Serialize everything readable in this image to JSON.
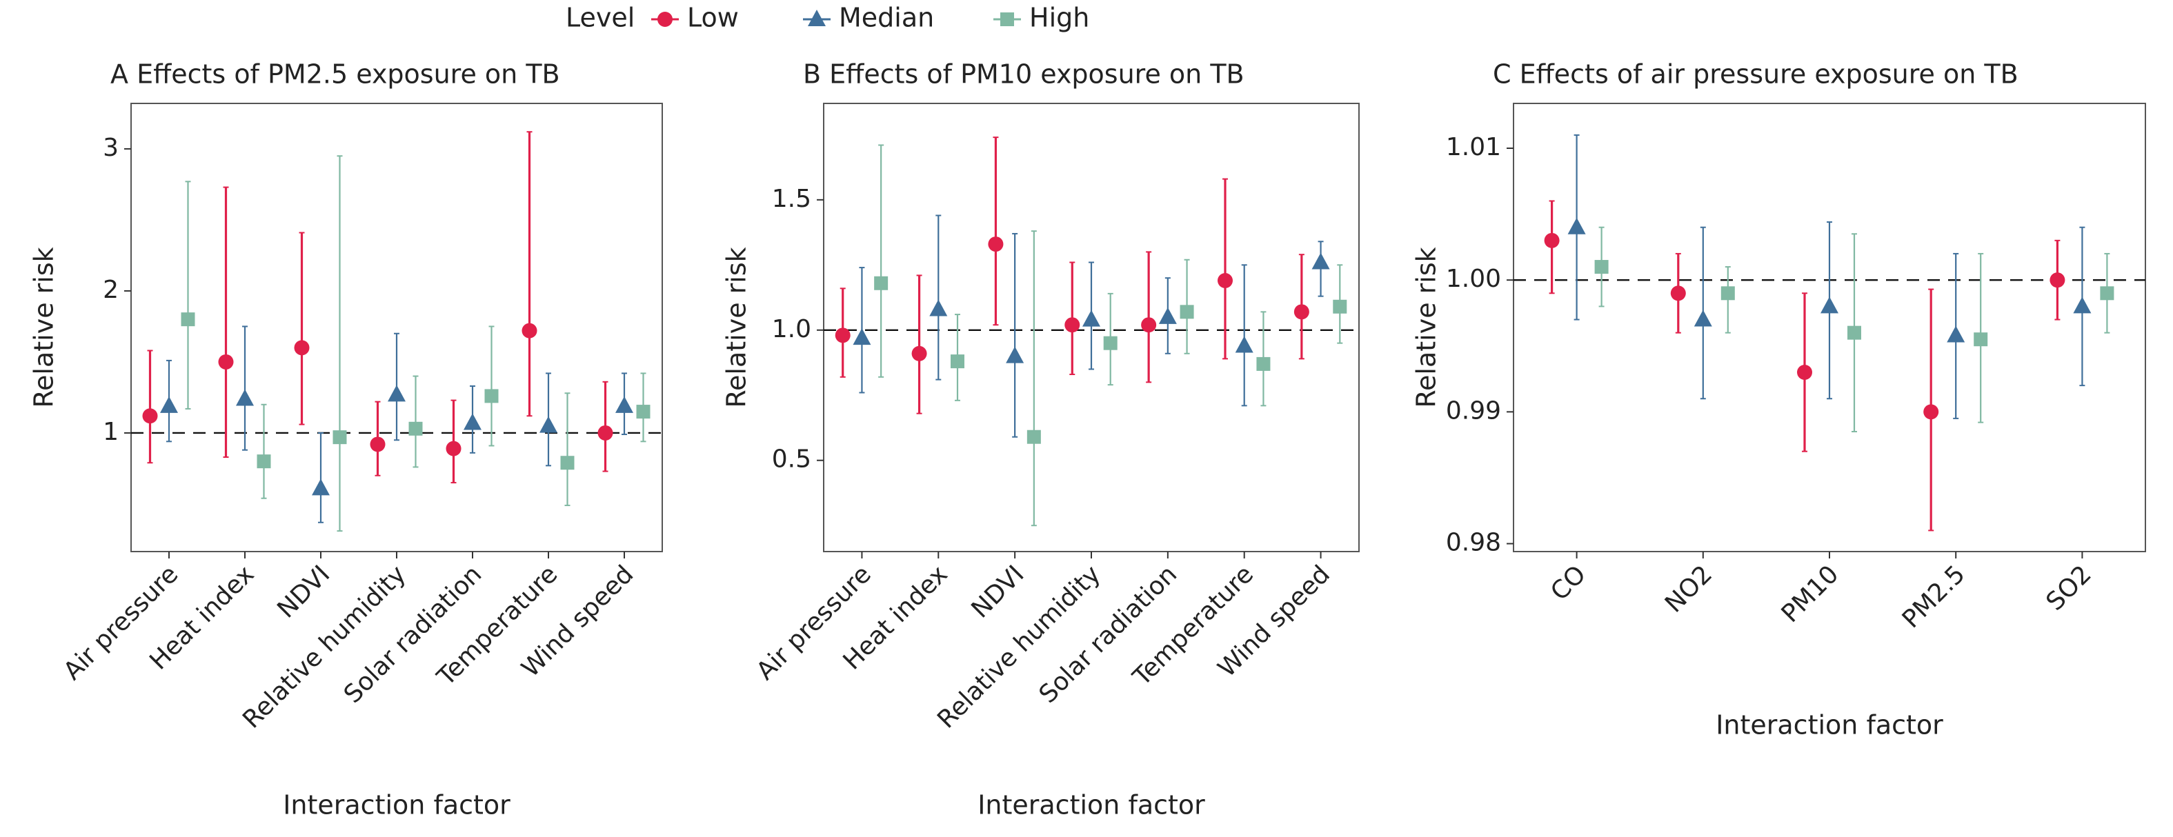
{
  "chart_data": [
    {
      "type": "pointrange",
      "title": "A  Effects of PM2.5 exposure on TB",
      "y_label": "Relative risk",
      "x_label": "Interaction factor",
      "legend_title": "Level",
      "categories": [
        "Air pressure",
        "Heat index",
        "NDVI",
        "Relative humidity",
        "Solar radiation",
        "Temperature",
        "Wind speed"
      ],
      "ylim": [
        0.165,
        3.32
      ],
      "yticks": [
        1,
        2,
        3
      ],
      "hline": 1,
      "series": [
        {
          "name": "Low",
          "color": "#e0204a",
          "marker": "circle",
          "values": [
            1.12,
            1.5,
            1.6,
            0.92,
            0.89,
            1.72,
            1.0
          ],
          "lower": [
            0.79,
            0.83,
            1.06,
            0.7,
            0.65,
            1.12,
            0.73
          ],
          "upper": [
            1.58,
            2.73,
            2.41,
            1.22,
            1.23,
            3.12,
            1.36
          ]
        },
        {
          "name": "Median",
          "color": "#3f6f9a",
          "marker": "triangle",
          "values": [
            1.19,
            1.24,
            0.61,
            1.27,
            1.07,
            1.05,
            1.19
          ],
          "lower": [
            0.94,
            0.88,
            0.37,
            0.95,
            0.86,
            0.77,
            0.99
          ],
          "upper": [
            1.51,
            1.75,
            1.0,
            1.7,
            1.33,
            1.42,
            1.42
          ]
        },
        {
          "name": "High",
          "color": "#80b8a2",
          "marker": "square",
          "values": [
            1.8,
            0.8,
            0.97,
            1.03,
            1.26,
            0.79,
            1.15
          ],
          "lower": [
            1.17,
            0.54,
            0.31,
            0.76,
            0.91,
            0.49,
            0.94
          ],
          "upper": [
            2.77,
            1.2,
            2.95,
            1.4,
            1.75,
            1.28,
            1.42
          ]
        }
      ]
    },
    {
      "type": "pointrange",
      "title": "B  Effects of PM10 exposure on TB",
      "y_label": "Relative risk",
      "x_label": "Interaction factor",
      "categories": [
        "Air pressure",
        "Heat index",
        "NDVI",
        "Relative humidity",
        "Solar radiation",
        "Temperature",
        "Wind speed"
      ],
      "ylim": [
        0.15,
        1.87
      ],
      "yticks": [
        0.5,
        {
          "value": 1,
          "label": "1.0"
        },
        1.5
      ],
      "hline": 1,
      "series": [
        {
          "color": "#e0204a",
          "marker": "circle",
          "values": [
            0.98,
            0.91,
            1.33,
            1.02,
            1.02,
            1.19,
            1.07
          ],
          "lower": [
            0.82,
            0.68,
            1.02,
            0.83,
            0.8,
            0.89,
            0.89
          ],
          "upper": [
            1.16,
            1.21,
            1.74,
            1.26,
            1.3,
            1.58,
            1.29
          ]
        },
        {
          "color": "#3f6f9a",
          "marker": "triangle",
          "values": [
            0.97,
            1.08,
            0.9,
            1.04,
            1.05,
            0.94,
            1.26
          ],
          "lower": [
            0.76,
            0.81,
            0.59,
            0.85,
            0.91,
            0.71,
            1.13
          ],
          "upper": [
            1.24,
            1.44,
            1.37,
            1.26,
            1.2,
            1.25,
            1.34
          ]
        },
        {
          "color": "#80b8a2",
          "marker": "square",
          "values": [
            1.18,
            0.88,
            0.59,
            0.95,
            1.07,
            0.87,
            1.09
          ],
          "lower": [
            0.82,
            0.73,
            0.25,
            0.79,
            0.91,
            0.71,
            0.95
          ],
          "upper": [
            1.71,
            1.06,
            1.38,
            1.14,
            1.27,
            1.07,
            1.25
          ]
        }
      ]
    },
    {
      "type": "pointrange",
      "title": "C  Effects of air pressure exposure on TB",
      "y_label": "Relative risk",
      "x_label": "Interaction factor",
      "categories": [
        "CO",
        "NO2",
        "PM10",
        "PM2.5",
        "SO2"
      ],
      "ylim": [
        0.9794,
        1.0134
      ],
      "yticks": [
        0.98,
        0.99,
        {
          "value": 1,
          "label": "1.00"
        },
        1.01
      ],
      "hline": 1,
      "series": [
        {
          "color": "#e0204a",
          "marker": "circle",
          "values": [
            1.003,
            0.999,
            0.993,
            0.99,
            1.0
          ],
          "lower": [
            0.999,
            0.996,
            0.987,
            0.981,
            0.997
          ],
          "upper": [
            1.006,
            1.002,
            0.999,
            0.9993,
            1.003
          ]
        },
        {
          "color": "#3f6f9a",
          "marker": "triangle",
          "values": [
            1.004,
            0.997,
            0.998,
            0.9958,
            0.998
          ],
          "lower": [
            0.997,
            0.991,
            0.991,
            0.9895,
            0.992
          ],
          "upper": [
            1.011,
            1.004,
            1.0044,
            1.002,
            1.004
          ]
        },
        {
          "color": "#80b8a2",
          "marker": "square",
          "values": [
            1.001,
            0.999,
            0.996,
            0.9955,
            0.999
          ],
          "lower": [
            0.998,
            0.996,
            0.9885,
            0.9892,
            0.996
          ],
          "upper": [
            1.004,
            1.001,
            1.0035,
            1.002,
            1.002
          ]
        }
      ]
    }
  ]
}
